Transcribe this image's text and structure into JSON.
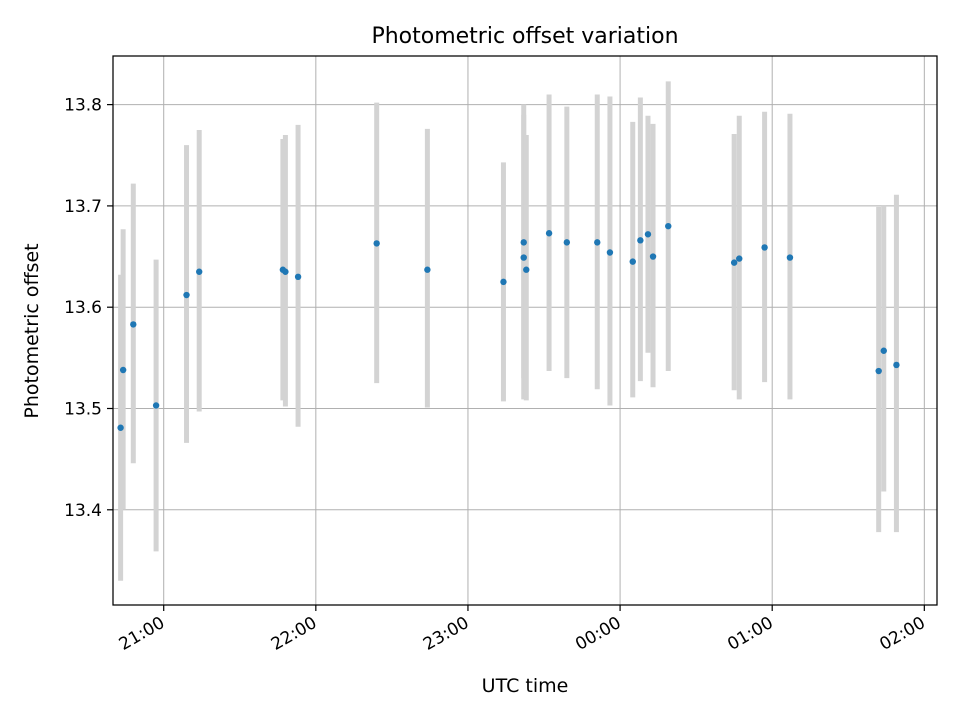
{
  "chart_data": {
    "type": "scatter",
    "title": "Photometric offset variation",
    "xlabel": "UTC time",
    "ylabel": "Photometric offset",
    "x_unit": "UTC time",
    "xlim": [
      "20:40",
      "26:05"
    ],
    "ylim": [
      13.306,
      13.848
    ],
    "grid": true,
    "x_ticks": [
      {
        "label": "21:00",
        "value": "21:00"
      },
      {
        "label": "22:00",
        "value": "22:00"
      },
      {
        "label": "23:00",
        "value": "23:00"
      },
      {
        "label": "00:00",
        "value": "24:00"
      },
      {
        "label": "01:00",
        "value": "25:00"
      },
      {
        "label": "02:00",
        "value": "26:00"
      }
    ],
    "y_ticks": [
      13.4,
      13.5,
      13.6,
      13.7,
      13.8
    ],
    "y_tick_labels": [
      "13.4",
      "13.5",
      "13.6",
      "13.7",
      "13.8"
    ],
    "series": [
      {
        "marker_color": "#1f77b4",
        "errorbar_color": "#d3d3d3",
        "points": [
          {
            "x": "20:43",
            "y": 13.481,
            "lo": 13.33,
            "hi": 13.632
          },
          {
            "x": "20:44",
            "y": 13.538,
            "lo": 13.4,
            "hi": 13.677
          },
          {
            "x": "20:48",
            "y": 13.583,
            "lo": 13.446,
            "hi": 13.722
          },
          {
            "x": "20:57",
            "y": 13.503,
            "lo": 13.359,
            "hi": 13.647
          },
          {
            "x": "21:09",
            "y": 13.612,
            "lo": 13.466,
            "hi": 13.76
          },
          {
            "x": "21:14",
            "y": 13.635,
            "lo": 13.497,
            "hi": 13.775
          },
          {
            "x": "21:47",
            "y": 13.637,
            "lo": 13.508,
            "hi": 13.766
          },
          {
            "x": "21:48",
            "y": 13.635,
            "lo": 13.502,
            "hi": 13.77
          },
          {
            "x": "21:53",
            "y": 13.63,
            "lo": 13.482,
            "hi": 13.78
          },
          {
            "x": "22:24",
            "y": 13.663,
            "lo": 13.525,
            "hi": 13.802
          },
          {
            "x": "22:44",
            "y": 13.637,
            "lo": 13.501,
            "hi": 13.776
          },
          {
            "x": "23:14",
            "y": 13.625,
            "lo": 13.507,
            "hi": 13.743
          },
          {
            "x": "23:22",
            "y": 13.664,
            "lo": 13.53,
            "hi": 13.8
          },
          {
            "x": "23:22",
            "y": 13.649,
            "lo": 13.509,
            "hi": 13.79
          },
          {
            "x": "23:23",
            "y": 13.637,
            "lo": 13.508,
            "hi": 13.77
          },
          {
            "x": "23:32",
            "y": 13.673,
            "lo": 13.537,
            "hi": 13.81
          },
          {
            "x": "23:39",
            "y": 13.664,
            "lo": 13.53,
            "hi": 13.798
          },
          {
            "x": "23:51",
            "y": 13.664,
            "lo": 13.519,
            "hi": 13.81
          },
          {
            "x": "23:56",
            "y": 13.654,
            "lo": 13.503,
            "hi": 13.808
          },
          {
            "x": "24:05",
            "y": 13.645,
            "lo": 13.511,
            "hi": 13.783
          },
          {
            "x": "24:08",
            "y": 13.666,
            "lo": 13.527,
            "hi": 13.807
          },
          {
            "x": "24:11",
            "y": 13.672,
            "lo": 13.555,
            "hi": 13.789
          },
          {
            "x": "24:13",
            "y": 13.65,
            "lo": 13.521,
            "hi": 13.781
          },
          {
            "x": "24:19",
            "y": 13.68,
            "lo": 13.537,
            "hi": 13.823
          },
          {
            "x": "24:45",
            "y": 13.644,
            "lo": 13.518,
            "hi": 13.771
          },
          {
            "x": "24:47",
            "y": 13.648,
            "lo": 13.509,
            "hi": 13.789
          },
          {
            "x": "24:57",
            "y": 13.659,
            "lo": 13.526,
            "hi": 13.793
          },
          {
            "x": "25:07",
            "y": 13.649,
            "lo": 13.509,
            "hi": 13.791
          },
          {
            "x": "25:42",
            "y": 13.537,
            "lo": 13.378,
            "hi": 13.699
          },
          {
            "x": "25:44",
            "y": 13.557,
            "lo": 13.418,
            "hi": 13.7
          },
          {
            "x": "25:49",
            "y": 13.543,
            "lo": 13.378,
            "hi": 13.711
          }
        ]
      }
    ]
  }
}
